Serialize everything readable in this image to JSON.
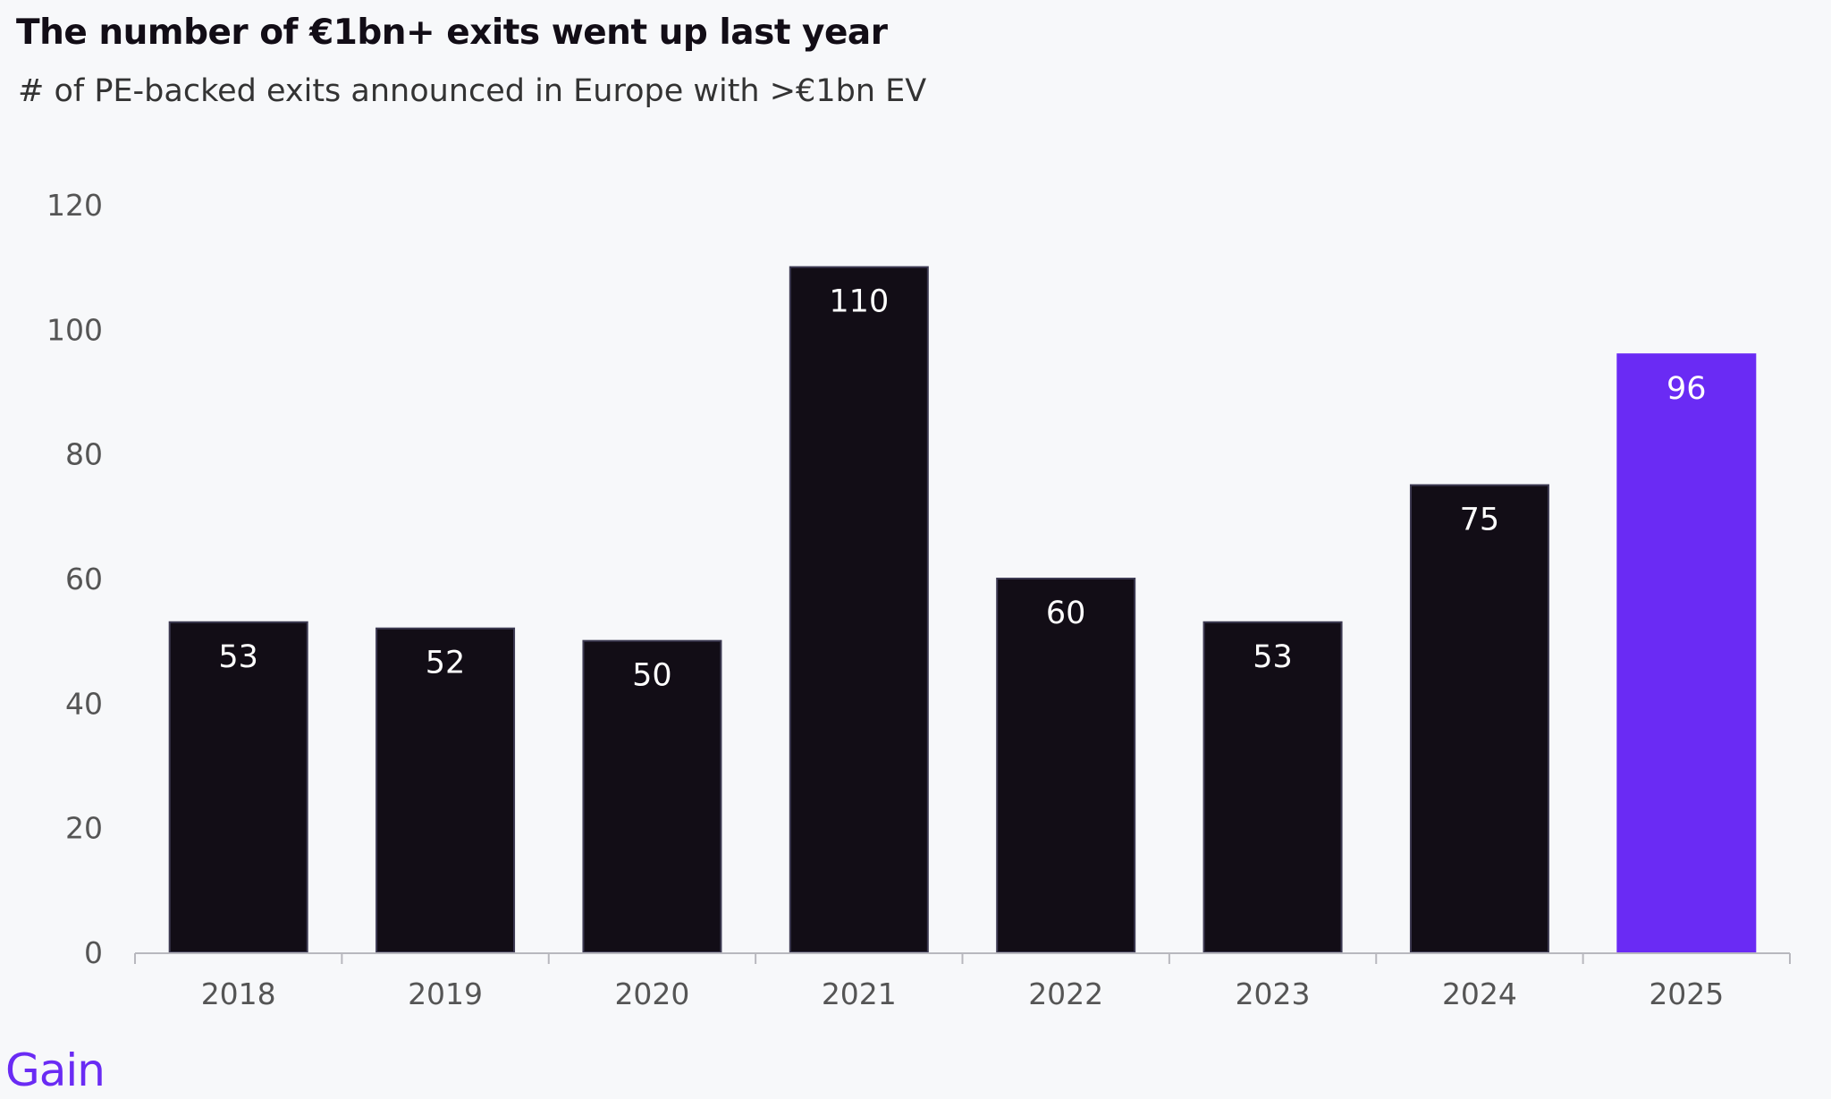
{
  "chart_data": {
    "type": "bar",
    "title": "The number of €1bn+ exits went up last year",
    "subtitle": "# of PE-backed exits announced in Europe with >€1bn EV",
    "xlabel": "",
    "ylabel": "",
    "categories": [
      "2018",
      "2019",
      "2020",
      "2021",
      "2022",
      "2023",
      "2024",
      "2025"
    ],
    "values": [
      53,
      52,
      50,
      110,
      60,
      53,
      75,
      96
    ],
    "data_labels": [
      "53",
      "52",
      "50",
      "110",
      "60",
      "53",
      "75",
      "96"
    ],
    "ylim": [
      0,
      120
    ],
    "yticks": [
      0,
      20,
      40,
      60,
      80,
      100,
      120
    ],
    "grid": false,
    "legend": "none",
    "colors": {
      "default_bar": "#120d16",
      "highlight_bar": "#6a2bf4",
      "bar_outline": "#3d3a52",
      "highlight_index": 7,
      "label_text": "#ffffff",
      "axis": "#b8b8be",
      "tick_text": "#555555"
    }
  },
  "brand": {
    "logo_text": "Gain",
    "color": "#6a2bf4"
  }
}
